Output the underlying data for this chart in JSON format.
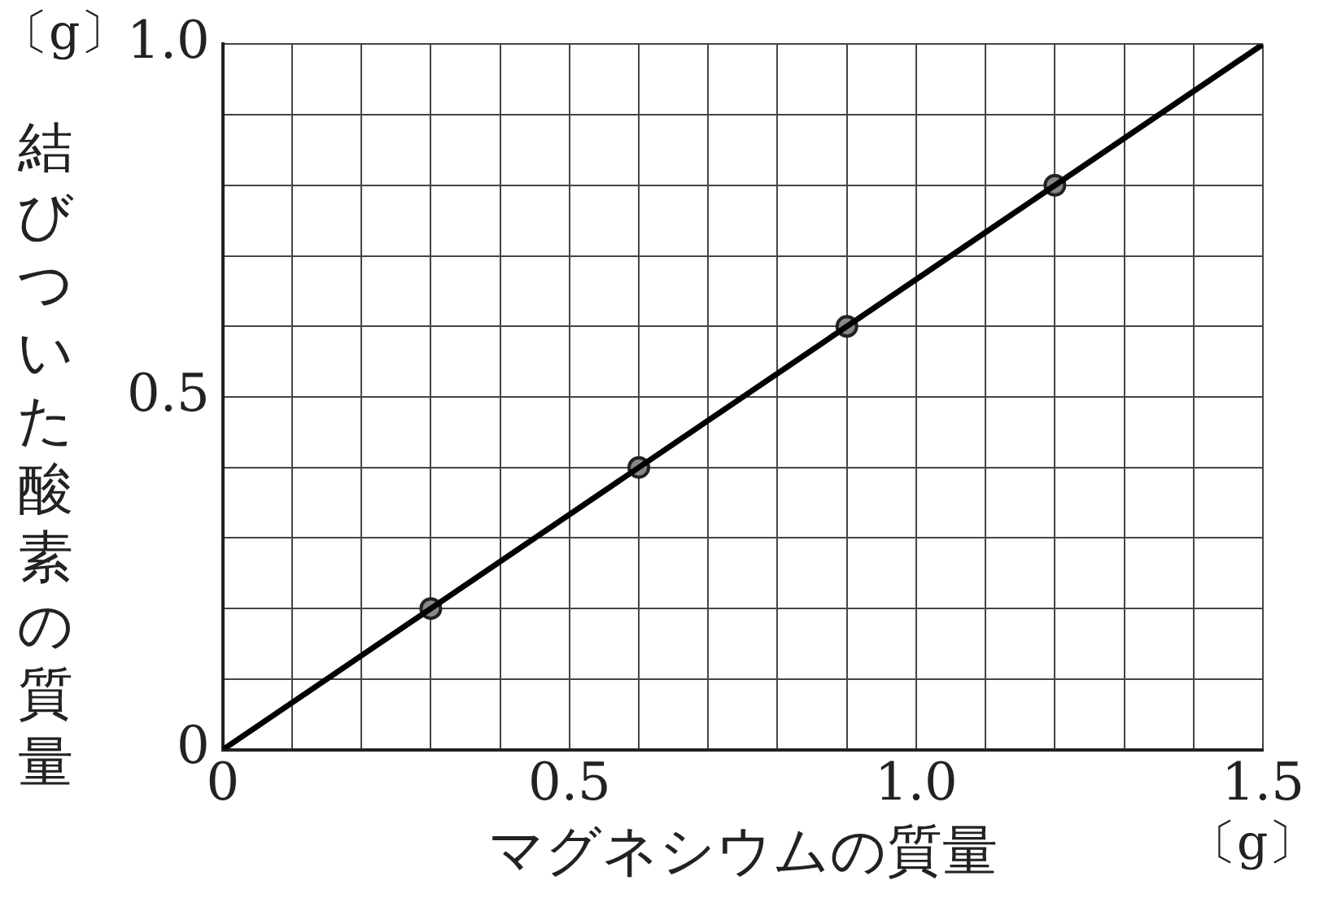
{
  "chart_data": {
    "type": "scatter",
    "xlabel": "マグネシウムの質量",
    "ylabel": "結びついた酸素の質量",
    "annotations": [
      "〔g〕",
      "〔g〕"
    ],
    "series": [
      {
        "type": "line",
        "color": "#000000",
        "x": [
          0,
          1.5
        ],
        "values": [
          0,
          1.0
        ],
        "marker": "none"
      },
      {
        "type": "scatter",
        "color": "#888888",
        "x": [
          0.3,
          0.6,
          0.9,
          1.2
        ],
        "values": [
          0.2,
          0.4,
          0.6,
          0.8
        ],
        "marker": "circle"
      }
    ],
    "xlim": [
      0,
      1.5
    ],
    "ylim": [
      0,
      1.0
    ],
    "xticks": [
      0,
      {
        "value": 0.1,
        "label": null
      },
      {
        "value": 0.2,
        "label": null
      },
      {
        "value": 0.3,
        "label": null
      },
      {
        "value": 0.4,
        "label": null
      },
      0.5,
      {
        "value": 0.6,
        "label": null
      },
      {
        "value": 0.7,
        "label": null
      },
      {
        "value": 0.8,
        "label": null
      },
      {
        "value": 0.9,
        "label": null
      },
      {
        "value": 1.0,
        "label": "1.0"
      },
      {
        "value": 1.1,
        "label": null
      },
      {
        "value": 1.2,
        "label": null
      },
      {
        "value": 1.3,
        "label": null
      },
      {
        "value": 1.4,
        "label": null
      },
      1.5
    ],
    "yticks": [
      0,
      {
        "value": 0.1,
        "label": null
      },
      {
        "value": 0.2,
        "label": null
      },
      {
        "value": 0.3,
        "label": null
      },
      {
        "value": 0.4,
        "label": null
      },
      0.5,
      {
        "value": 0.6,
        "label": null
      },
      {
        "value": 0.7,
        "label": null
      },
      {
        "value": 0.8,
        "label": null
      },
      {
        "value": 0.9,
        "label": null
      },
      {
        "value": 1.0,
        "label": "1.0"
      }
    ],
    "grid": true,
    "legend": false
  }
}
